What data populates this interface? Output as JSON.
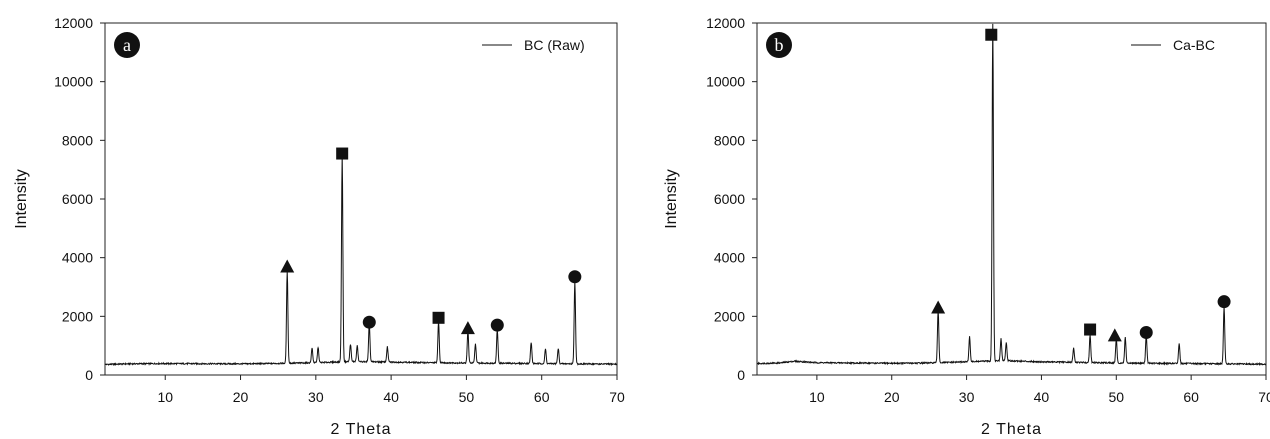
{
  "chart_data": [
    {
      "type": "line",
      "panel_label": "a",
      "xlabel": "2 Theta",
      "ylabel": "Intensity",
      "xlim": [
        2,
        70
      ],
      "ylim": [
        0,
        12000
      ],
      "x_ticks": [
        10,
        20,
        30,
        40,
        50,
        60,
        70
      ],
      "y_ticks": [
        0,
        2000,
        4000,
        6000,
        8000,
        10000,
        12000
      ],
      "grid": false,
      "legend_position": "top-right",
      "series": [
        {
          "name": "BC (Raw)",
          "baseline": [
            [
              2,
              360
            ],
            [
              5,
              380
            ],
            [
              10,
              390
            ],
            [
              20,
              380
            ],
            [
              25,
              395
            ],
            [
              30,
              420
            ],
            [
              35,
              460
            ],
            [
              40,
              440
            ],
            [
              45,
              420
            ],
            [
              50,
              410
            ],
            [
              55,
              400
            ],
            [
              60,
              390
            ],
            [
              65,
              380
            ],
            [
              70,
              370
            ]
          ],
          "peaks": [
            [
              26.2,
              3150
            ],
            [
              29.5,
              500
            ],
            [
              30.3,
              520
            ],
            [
              33.5,
              7050
            ],
            [
              34.6,
              600
            ],
            [
              35.5,
              540
            ],
            [
              37.1,
              1300
            ],
            [
              39.5,
              520
            ],
            [
              46.3,
              1400
            ],
            [
              50.2,
              1100
            ],
            [
              51.2,
              650
            ],
            [
              54.1,
              1150
            ],
            [
              58.6,
              720
            ],
            [
              60.5,
              500
            ],
            [
              62.2,
              520
            ],
            [
              64.4,
              2800
            ]
          ]
        }
      ],
      "annotations": [
        {
          "marker": "triangle",
          "x": 26.2,
          "y": 3700
        },
        {
          "marker": "square",
          "x": 33.5,
          "y": 7550
        },
        {
          "marker": "circle",
          "x": 37.1,
          "y": 1800
        },
        {
          "marker": "square",
          "x": 46.3,
          "y": 1950
        },
        {
          "marker": "triangle",
          "x": 50.2,
          "y": 1600
        },
        {
          "marker": "circle",
          "x": 54.1,
          "y": 1700
        },
        {
          "marker": "circle",
          "x": 64.4,
          "y": 3350
        }
      ]
    },
    {
      "type": "line",
      "panel_label": "b",
      "xlabel": "2 Theta",
      "ylabel": "Intensity",
      "xlim": [
        2,
        70
      ],
      "ylim": [
        0,
        12000
      ],
      "x_ticks": [
        10,
        20,
        30,
        40,
        50,
        60,
        70
      ],
      "y_ticks": [
        0,
        2000,
        4000,
        6000,
        8000,
        10000,
        12000
      ],
      "grid": false,
      "legend_position": "top-right",
      "series": [
        {
          "name": "Ca-BC",
          "baseline": [
            [
              2,
              390
            ],
            [
              5,
              410
            ],
            [
              7,
              470
            ],
            [
              10,
              420
            ],
            [
              20,
              400
            ],
            [
              25,
              410
            ],
            [
              30,
              450
            ],
            [
              35,
              490
            ],
            [
              40,
              450
            ],
            [
              45,
              430
            ],
            [
              50,
              410
            ],
            [
              55,
              400
            ],
            [
              60,
              390
            ],
            [
              65,
              380
            ],
            [
              70,
              370
            ]
          ],
          "peaks": [
            [
              26.2,
              1800
            ],
            [
              30.4,
              850
            ],
            [
              33.5,
              11500
            ],
            [
              34.6,
              750
            ],
            [
              35.3,
              620
            ],
            [
              44.3,
              500
            ],
            [
              46.5,
              950
            ],
            [
              50.0,
              820
            ],
            [
              51.2,
              880
            ],
            [
              54.0,
              950
            ],
            [
              58.4,
              700
            ],
            [
              64.4,
              1950
            ]
          ]
        }
      ],
      "annotations": [
        {
          "marker": "triangle",
          "x": 26.2,
          "y": 2300
        },
        {
          "marker": "square",
          "x": 33.3,
          "y": 11600
        },
        {
          "marker": "square",
          "x": 46.5,
          "y": 1550
        },
        {
          "marker": "triangle",
          "x": 49.8,
          "y": 1350
        },
        {
          "marker": "circle",
          "x": 54.0,
          "y": 1450
        },
        {
          "marker": "circle",
          "x": 64.4,
          "y": 2500
        }
      ]
    }
  ]
}
